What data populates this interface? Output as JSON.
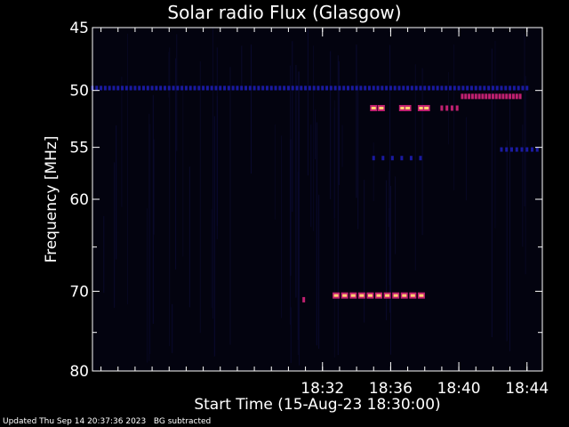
{
  "chart_data": {
    "type": "heatmap",
    "title": "Solar radio Flux (Glasgow)",
    "xlabel": "Start Time (15-Aug-23 18:30:00)",
    "ylabel": "Frequency [MHz]",
    "footer": "Updated Thu Sep 14 20:37:36 2023   BG subtracted",
    "x_range_minutes": [
      18.5,
      44.9
    ],
    "x_ticks": [
      {
        "label": "18:32",
        "minute": 32
      },
      {
        "label": "18:36",
        "minute": 36
      },
      {
        "label": "18:40",
        "minute": 40
      },
      {
        "label": "18:44",
        "minute": 44
      }
    ],
    "y_range_mhz": [
      45,
      80
    ],
    "y_ticks": [
      45,
      50,
      55,
      60,
      70,
      80
    ],
    "y_scale": "log",
    "colors": {
      "background": "#000000",
      "plot_background": "#03030f",
      "axis": "#ffffff",
      "low": "#1a1aa0",
      "mid": "#c02070",
      "high": "#ffd070"
    },
    "features": [
      {
        "name": "70.5 MHz band",
        "freq_mhz": 70.5,
        "t_start": 32.8,
        "t_end": 38.0,
        "period_min": 0.5,
        "intensity": "high"
      },
      {
        "name": "51.5 MHz band a",
        "freq_mhz": 51.5,
        "t_start": 35.0,
        "t_end": 35.6,
        "period_min": 0.45,
        "intensity": "high"
      },
      {
        "name": "51.5 MHz band b",
        "freq_mhz": 51.5,
        "t_start": 36.7,
        "t_end": 37.0,
        "period_min": 0.3,
        "intensity": "high"
      },
      {
        "name": "51.5 MHz band c",
        "freq_mhz": 51.5,
        "t_start": 37.8,
        "t_end": 38.1,
        "period_min": 0.3,
        "intensity": "high"
      },
      {
        "name": "51.5 MHz band d",
        "freq_mhz": 51.5,
        "t_start": 39.0,
        "t_end": 39.9,
        "period_min": 0.3,
        "intensity": "mid"
      },
      {
        "name": "50.5 MHz band",
        "freq_mhz": 50.5,
        "t_start": 40.2,
        "t_end": 43.6,
        "period_min": 0.2,
        "intensity": "mid"
      },
      {
        "name": "49.8 MHz band",
        "freq_mhz": 49.8,
        "t_start": 18.5,
        "t_end": 44.0,
        "period_min": 0.25,
        "intensity": "low"
      },
      {
        "name": "56 MHz band",
        "freq_mhz": 56.0,
        "t_start": 35.0,
        "t_end": 38.1,
        "period_min": 0.55,
        "intensity": "low"
      },
      {
        "name": "55 MHz band",
        "freq_mhz": 55.2,
        "t_start": 42.5,
        "t_end": 44.8,
        "period_min": 0.3,
        "intensity": "low"
      },
      {
        "name": "71 MHz spot",
        "freq_mhz": 71.0,
        "t_start": 30.9,
        "t_end": 31.0,
        "period_min": 1.0,
        "intensity": "mid"
      }
    ]
  }
}
